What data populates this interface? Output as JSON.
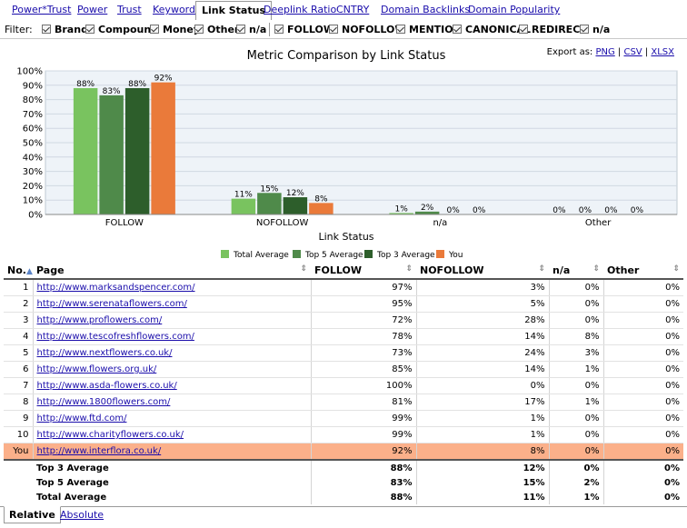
{
  "tabs": [
    "Power*Trust",
    "Power",
    "Trust",
    "Keyword",
    "Link Status",
    "Deeplink Ratio",
    "CNTRY",
    "Domain Backlinks",
    "Domain Popularity"
  ],
  "active_tab": "Link Status",
  "filter": {
    "label": "Filter:",
    "group1": [
      "Brand",
      "Compound",
      "Money",
      "Other",
      "n/a"
    ],
    "group2": [
      "FOLLOW",
      "NOFOLLOW",
      "MENTION",
      "CANONICAL",
      "REDIRECT",
      "n/a"
    ]
  },
  "export": {
    "label": "Export as:",
    "formats": [
      "PNG",
      "CSV",
      "XLSX"
    ]
  },
  "colors": {
    "total_average": "#79c35f",
    "top5_average": "#4f8a4a",
    "top3_average": "#2d5e2b",
    "you": "#ea7a3a",
    "you_row": "#fbb08a"
  },
  "chart_data": {
    "type": "bar",
    "title": "Metric Comparison by Link Status",
    "xlabel": "Link Status",
    "ylabel": "",
    "ylim": [
      0,
      100
    ],
    "yticks": [
      "0%",
      "10%",
      "20%",
      "30%",
      "40%",
      "50%",
      "60%",
      "70%",
      "80%",
      "90%",
      "100%"
    ],
    "categories": [
      "FOLLOW",
      "NOFOLLOW",
      "n/a",
      "Other"
    ],
    "series": [
      {
        "name": "Total Average",
        "values": [
          88,
          11,
          1,
          0
        ]
      },
      {
        "name": "Top 5 Average",
        "values": [
          83,
          15,
          2,
          0
        ]
      },
      {
        "name": "Top 3 Average",
        "values": [
          88,
          12,
          0,
          0
        ]
      },
      {
        "name": "You",
        "values": [
          92,
          8,
          0,
          0
        ]
      }
    ],
    "legend_position": "bottom",
    "grid": true
  },
  "table": {
    "columns": [
      "No.",
      "Page",
      "FOLLOW",
      "NOFOLLOW",
      "n/a",
      "Other"
    ],
    "rows": [
      {
        "no": "1",
        "page": "http://www.marksandspencer.com/",
        "follow": "97%",
        "nofollow": "3%",
        "na": "0%",
        "other": "0%"
      },
      {
        "no": "2",
        "page": "http://www.serenataflowers.com/",
        "follow": "95%",
        "nofollow": "5%",
        "na": "0%",
        "other": "0%"
      },
      {
        "no": "3",
        "page": "http://www.proflowers.com/",
        "follow": "72%",
        "nofollow": "28%",
        "na": "0%",
        "other": "0%"
      },
      {
        "no": "4",
        "page": "http://www.tescofreshflowers.com/",
        "follow": "78%",
        "nofollow": "14%",
        "na": "8%",
        "other": "0%"
      },
      {
        "no": "5",
        "page": "http://www.nextflowers.co.uk/",
        "follow": "73%",
        "nofollow": "24%",
        "na": "3%",
        "other": "0%"
      },
      {
        "no": "6",
        "page": "http://www.flowers.org.uk/",
        "follow": "85%",
        "nofollow": "14%",
        "na": "1%",
        "other": "0%"
      },
      {
        "no": "7",
        "page": "http://www.asda-flowers.co.uk/",
        "follow": "100%",
        "nofollow": "0%",
        "na": "0%",
        "other": "0%"
      },
      {
        "no": "8",
        "page": "http://www.1800flowers.com/",
        "follow": "81%",
        "nofollow": "17%",
        "na": "1%",
        "other": "0%"
      },
      {
        "no": "9",
        "page": "http://www.ftd.com/",
        "follow": "99%",
        "nofollow": "1%",
        "na": "0%",
        "other": "0%"
      },
      {
        "no": "10",
        "page": "http://www.charityflowers.co.uk/",
        "follow": "99%",
        "nofollow": "1%",
        "na": "0%",
        "other": "0%"
      },
      {
        "no": "You",
        "page": "http://www.interflora.co.uk/",
        "follow": "92%",
        "nofollow": "8%",
        "na": "0%",
        "other": "0%",
        "you": true
      }
    ],
    "summary": [
      {
        "label": "Top 3 Average",
        "follow": "88%",
        "nofollow": "12%",
        "na": "0%",
        "other": "0%"
      },
      {
        "label": "Top 5 Average",
        "follow": "83%",
        "nofollow": "15%",
        "na": "2%",
        "other": "0%"
      },
      {
        "label": "Total Average",
        "follow": "88%",
        "nofollow": "11%",
        "na": "1%",
        "other": "0%"
      }
    ]
  },
  "bottom_tabs": [
    "Relative",
    "Absolute"
  ],
  "icons": {
    "sort": "sort-ascending-icon",
    "column_sort": "sort-icon",
    "checkbox": "checkbox-checked-icon"
  }
}
